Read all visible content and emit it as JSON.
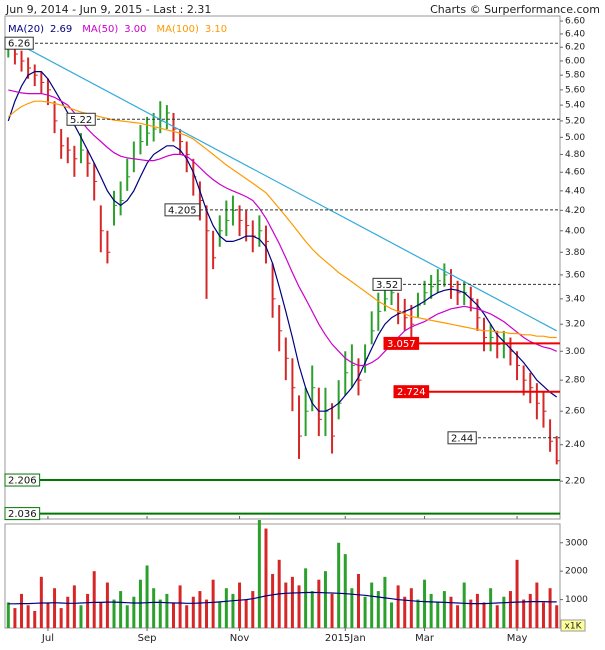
{
  "header": {
    "title": "Jun 9, 2014 - Jun 9, 2015 - Last : 2.31",
    "credit": "Charts © Surperformance.com"
  },
  "chart_data": [
    {
      "type": "hlc",
      "log_scale": true,
      "ylim": [
        2.01,
        6.68
      ],
      "yticks": [
        {
          "value": 2.2,
          "label": "2.20"
        },
        {
          "value": 2.4,
          "label": "2.40"
        },
        {
          "value": 2.6,
          "label": "2.60"
        },
        {
          "value": 2.8,
          "label": "2.80"
        },
        {
          "value": 3,
          "label": "3.00"
        },
        {
          "value": 3.2,
          "label": "3.20"
        },
        {
          "value": 3.4,
          "label": "3.40"
        },
        {
          "value": 3.6,
          "label": "3.60"
        },
        {
          "value": 3.8,
          "label": "3.80"
        },
        {
          "value": 4,
          "label": "4.00"
        },
        {
          "value": 4.2,
          "label": "4.20"
        },
        {
          "value": 4.4,
          "label": "4.40"
        },
        {
          "value": 4.6,
          "label": "4.60"
        },
        {
          "value": 4.8,
          "label": "4.80"
        },
        {
          "value": 5,
          "label": "5.00"
        },
        {
          "value": 5.2,
          "label": "5.20"
        },
        {
          "value": 5.4,
          "label": "5.40"
        },
        {
          "value": 5.6,
          "label": "5.60"
        },
        {
          "value": 5.8,
          "label": "5.80"
        },
        {
          "value": 6,
          "label": "6.00"
        },
        {
          "value": 6.2,
          "label": "6.20"
        },
        {
          "value": 6.4,
          "label": "6.40"
        },
        {
          "value": 6.6,
          "label": "6.60"
        }
      ],
      "up_color": "#2ca02c",
      "down_color": "#d62728",
      "high": [
        6.32,
        6.25,
        6.15,
        6.05,
        5.95,
        5.85,
        5.75,
        5.45,
        5.1,
        5.0,
        4.9,
        5.05,
        4.85,
        4.7,
        4.25,
        4.0,
        4.4,
        4.5,
        4.75,
        4.95,
        5.15,
        5.25,
        5.3,
        5.45,
        5.4,
        5.3,
        5.1,
        4.95,
        4.75,
        4.5,
        4.25,
        4.0,
        4.15,
        4.3,
        4.35,
        4.25,
        4.2,
        4.1,
        4.15,
        4.05,
        3.7,
        3.35,
        3.1,
        2.95,
        2.7,
        2.75,
        2.9,
        2.75,
        2.75,
        2.65,
        2.8,
        3.0,
        3.05,
        2.95,
        3.05,
        3.3,
        3.45,
        3.5,
        3.55,
        3.45,
        3.4,
        3.35,
        3.45,
        3.55,
        3.6,
        3.65,
        3.7,
        3.65,
        3.55,
        3.55,
        3.5,
        3.4,
        3.25,
        3.2,
        3.15,
        3.15,
        3.1,
        3.0,
        2.9,
        2.85,
        2.78,
        2.72,
        2.55,
        2.45
      ],
      "low": [
        6.05,
        5.95,
        5.85,
        5.75,
        5.65,
        5.55,
        5.4,
        5.05,
        4.75,
        4.7,
        4.55,
        4.7,
        4.55,
        4.3,
        3.8,
        3.7,
        4.05,
        4.15,
        4.4,
        4.6,
        4.8,
        4.9,
        4.95,
        5.05,
        5.1,
        4.95,
        4.8,
        4.6,
        4.35,
        4.1,
        3.4,
        3.65,
        3.85,
        3.95,
        4.05,
        3.95,
        3.9,
        3.8,
        3.85,
        3.7,
        3.25,
        3.0,
        2.8,
        2.6,
        2.32,
        2.45,
        2.6,
        2.45,
        2.45,
        2.35,
        2.55,
        2.7,
        2.75,
        2.7,
        2.85,
        3.05,
        3.15,
        3.3,
        3.35,
        3.2,
        3.15,
        3.1,
        3.25,
        3.35,
        3.4,
        3.45,
        3.5,
        3.4,
        3.35,
        3.35,
        3.3,
        3.15,
        3.0,
        3.0,
        2.95,
        2.95,
        2.9,
        2.8,
        2.7,
        2.65,
        2.55,
        2.5,
        2.36,
        2.29
      ],
      "close": [
        6.2,
        6.1,
        6.0,
        5.9,
        5.8,
        5.7,
        5.6,
        5.2,
        4.9,
        4.85,
        4.75,
        4.85,
        4.7,
        4.5,
        4.0,
        3.8,
        4.25,
        4.3,
        4.55,
        4.75,
        4.95,
        5.05,
        5.1,
        5.2,
        5.3,
        5.1,
        4.95,
        4.8,
        4.55,
        4.3,
        4.0,
        3.75,
        4.0,
        4.1,
        4.2,
        4.1,
        4.05,
        3.95,
        4.0,
        3.9,
        3.4,
        3.15,
        2.95,
        2.75,
        2.45,
        2.6,
        2.75,
        2.55,
        2.6,
        2.45,
        2.65,
        2.85,
        2.9,
        2.8,
        2.95,
        3.15,
        3.3,
        3.4,
        3.45,
        3.3,
        3.25,
        3.2,
        3.35,
        3.45,
        3.5,
        3.55,
        3.6,
        3.5,
        3.45,
        3.45,
        3.4,
        3.25,
        3.1,
        3.1,
        3.05,
        3.05,
        3.0,
        2.9,
        2.8,
        2.75,
        2.65,
        2.6,
        2.42,
        2.31
      ],
      "series": [
        {
          "name": "MA(20)",
          "legend_value": "2.69",
          "color": "#000080",
          "values": [
            5.2,
            5.45,
            5.65,
            5.8,
            5.85,
            5.85,
            5.75,
            5.6,
            5.45,
            5.3,
            5.15,
            5.0,
            4.85,
            4.7,
            4.55,
            4.4,
            4.3,
            4.25,
            4.3,
            4.4,
            4.55,
            4.7,
            4.8,
            4.85,
            4.9,
            4.9,
            4.85,
            4.75,
            4.6,
            4.4,
            4.2,
            4.05,
            3.95,
            3.9,
            3.9,
            3.92,
            3.95,
            3.95,
            3.92,
            3.85,
            3.7,
            3.5,
            3.3,
            3.1,
            2.9,
            2.75,
            2.65,
            2.6,
            2.6,
            2.62,
            2.65,
            2.7,
            2.75,
            2.82,
            2.92,
            3.02,
            3.12,
            3.2,
            3.25,
            3.28,
            3.3,
            3.32,
            3.35,
            3.38,
            3.42,
            3.45,
            3.47,
            3.48,
            3.47,
            3.45,
            3.4,
            3.35,
            3.28,
            3.2,
            3.12,
            3.07,
            3.02,
            2.97,
            2.92,
            2.86,
            2.8,
            2.76,
            2.72,
            2.69
          ]
        },
        {
          "name": "MA(50)",
          "legend_value": "3.00",
          "color": "#cc00cc",
          "values": [
            5.6,
            5.58,
            5.56,
            5.55,
            5.55,
            5.55,
            5.53,
            5.5,
            5.45,
            5.4,
            5.3,
            5.2,
            5.1,
            5.02,
            4.95,
            4.88,
            4.82,
            4.78,
            4.76,
            4.75,
            4.74,
            4.73,
            4.73,
            4.75,
            4.78,
            4.8,
            4.8,
            4.78,
            4.72,
            4.65,
            4.58,
            4.52,
            4.47,
            4.43,
            4.4,
            4.37,
            4.34,
            4.3,
            4.22,
            4.12,
            4.0,
            3.88,
            3.75,
            3.62,
            3.5,
            3.4,
            3.3,
            3.2,
            3.12,
            3.05,
            3.0,
            2.95,
            2.92,
            2.9,
            2.9,
            2.92,
            2.95,
            3.0,
            3.05,
            3.1,
            3.15,
            3.18,
            3.2,
            3.22,
            3.25,
            3.28,
            3.3,
            3.32,
            3.33,
            3.34,
            3.33,
            3.32,
            3.3,
            3.28,
            3.25,
            3.22,
            3.18,
            3.14,
            3.1,
            3.07,
            3.05,
            3.03,
            3.02,
            3.0
          ]
        },
        {
          "name": "MA(100)",
          "legend_value": "3.10",
          "color": "#ff9900",
          "values": [
            5.25,
            5.32,
            5.38,
            5.42,
            5.45,
            5.45,
            5.44,
            5.42,
            5.4,
            5.37,
            5.34,
            5.31,
            5.29,
            5.27,
            5.25,
            5.23,
            5.21,
            5.2,
            5.19,
            5.18,
            5.17,
            5.15,
            5.13,
            5.11,
            5.09,
            5.07,
            5.05,
            5.02,
            4.98,
            4.92,
            4.86,
            4.8,
            4.74,
            4.68,
            4.63,
            4.58,
            4.53,
            4.48,
            4.43,
            4.38,
            4.3,
            4.22,
            4.14,
            4.06,
            3.98,
            3.9,
            3.83,
            3.77,
            3.72,
            3.67,
            3.62,
            3.58,
            3.54,
            3.5,
            3.46,
            3.42,
            3.38,
            3.35,
            3.32,
            3.3,
            3.28,
            3.26,
            3.25,
            3.24,
            3.23,
            3.22,
            3.21,
            3.2,
            3.19,
            3.18,
            3.17,
            3.16,
            3.15,
            3.15,
            3.14,
            3.14,
            3.13,
            3.13,
            3.12,
            3.12,
            3.11,
            3.11,
            3.1,
            3.1
          ]
        }
      ],
      "trend": {
        "color": "#33aadd",
        "values": [
          6.33,
          3.15
        ]
      },
      "levels": [
        {
          "value": 6.26,
          "color": "#333333",
          "style": "dashed"
        },
        {
          "value": 5.22,
          "color": "#333333",
          "style": "dashed"
        },
        {
          "value": 4.205,
          "color": "#333333",
          "style": "dashed"
        },
        {
          "value": 3.52,
          "color": "#333333",
          "style": "dashed"
        },
        {
          "value": 3.057,
          "color": "#ee0000",
          "style": "solid"
        },
        {
          "value": 2.724,
          "color": "#ee0000",
          "style": "solid"
        },
        {
          "value": 2.44,
          "color": "#333333",
          "style": "dashed"
        },
        {
          "value": 2.206,
          "color": "#007700",
          "style": "solid"
        },
        {
          "value": 2.036,
          "color": "#007700",
          "style": "solid"
        }
      ]
    },
    {
      "type": "bar",
      "ylim": [
        0,
        3660
      ],
      "yticks": [
        1000,
        2000,
        3000
      ],
      "unit": "x1K",
      "categories": [
        null,
        null,
        null,
        null,
        null,
        null,
        "Jul",
        null,
        null,
        null,
        null,
        null,
        null,
        null,
        null,
        null,
        null,
        null,
        null,
        null,
        null,
        "Sep",
        null,
        null,
        null,
        null,
        null,
        null,
        null,
        null,
        null,
        null,
        null,
        null,
        null,
        "Nov",
        null,
        null,
        null,
        null,
        null,
        null,
        null,
        null,
        null,
        null,
        null,
        null,
        null,
        null,
        null,
        "2015Jan",
        null,
        null,
        null,
        null,
        null,
        null,
        null,
        null,
        null,
        null,
        null,
        "Mar",
        null,
        null,
        null,
        null,
        null,
        null,
        null,
        null,
        null,
        null,
        null,
        null,
        null,
        "May",
        null,
        null,
        null,
        null,
        null,
        null
      ],
      "values": [
        900,
        700,
        1200,
        800,
        600,
        1800,
        900,
        1400,
        700,
        1100,
        1500,
        800,
        1200,
        2000,
        900,
        1600,
        1000,
        1300,
        800,
        1100,
        1700,
        2200,
        1400,
        1000,
        1200,
        900,
        1500,
        800,
        1100,
        1300,
        1000,
        1700,
        900,
        1400,
        1200,
        1600,
        1000,
        1300,
        3800,
        3500,
        1900,
        2400,
        1600,
        1800,
        1500,
        2100,
        1300,
        1700,
        2000,
        1200,
        3000,
        2600,
        1400,
        1900,
        1100,
        1600,
        1300,
        1800,
        900,
        1500,
        1100,
        1400,
        1000,
        1700,
        1200,
        900,
        1300,
        1100,
        800,
        1600,
        1000,
        1200,
        900,
        1400,
        800,
        1100,
        1300,
        2400,
        1000,
        1200,
        1600,
        900,
        1400,
        800
      ],
      "series": [
        {
          "color": "#000080",
          "values": [
            850,
            850,
            860,
            860,
            870,
            880,
            880,
            890,
            880,
            870,
            870,
            880,
            890,
            900,
            900,
            910,
            910,
            900,
            890,
            880,
            880,
            890,
            900,
            900,
            890,
            880,
            880,
            870,
            870,
            880,
            890,
            900,
            920,
            940,
            960,
            980,
            1000,
            1030,
            1080,
            1130,
            1170,
            1200,
            1220,
            1230,
            1240,
            1250,
            1250,
            1250,
            1240,
            1230,
            1220,
            1210,
            1190,
            1170,
            1150,
            1120,
            1090,
            1060,
            1030,
            1000,
            980,
            960,
            940,
            930,
            920,
            910,
            900,
            890,
            880,
            870,
            860,
            860,
            860,
            870,
            880,
            890,
            900,
            910,
            920,
            930,
            930,
            930,
            920,
            920
          ]
        }
      ]
    }
  ]
}
